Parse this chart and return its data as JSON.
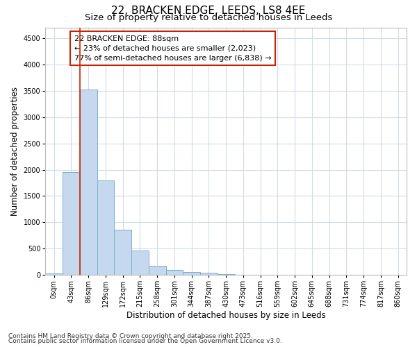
{
  "title_line1": "22, BRACKEN EDGE, LEEDS, LS8 4EE",
  "title_line2": "Size of property relative to detached houses in Leeds",
  "xlabel": "Distribution of detached houses by size in Leeds",
  "ylabel": "Number of detached properties",
  "categories": [
    "0sqm",
    "43sqm",
    "86sqm",
    "129sqm",
    "172sqm",
    "215sqm",
    "258sqm",
    "301sqm",
    "344sqm",
    "387sqm",
    "430sqm",
    "473sqm",
    "516sqm",
    "559sqm",
    "602sqm",
    "645sqm",
    "688sqm",
    "731sqm",
    "774sqm",
    "817sqm",
    "860sqm"
  ],
  "values": [
    30,
    1950,
    3530,
    1800,
    860,
    460,
    170,
    100,
    60,
    40,
    20,
    0,
    0,
    0,
    0,
    0,
    0,
    0,
    0,
    0,
    0
  ],
  "bar_color": "#c5d8ed",
  "bar_edge_color": "#7aafd4",
  "vline_x_index": 2,
  "vline_color": "#cc2200",
  "annotation_line1": "22 BRACKEN EDGE: 88sqm",
  "annotation_line2": "← 23% of detached houses are smaller (2,023)",
  "annotation_line3": "77% of semi-detached houses are larger (6,838) →",
  "annotation_box_color": "#cc2200",
  "ylim": [
    0,
    4700
  ],
  "yticks": [
    0,
    500,
    1000,
    1500,
    2000,
    2500,
    3000,
    3500,
    4000,
    4500
  ],
  "background_color": "#ffffff",
  "plot_bg_color": "#ffffff",
  "grid_color": "#d0dce8",
  "footer_line1": "Contains HM Land Registry data © Crown copyright and database right 2025.",
  "footer_line2": "Contains public sector information licensed under the Open Government Licence v3.0.",
  "title_fontsize": 11,
  "subtitle_fontsize": 9.5,
  "axis_label_fontsize": 8.5,
  "tick_fontsize": 7,
  "annotation_fontsize": 8,
  "footer_fontsize": 6.5
}
